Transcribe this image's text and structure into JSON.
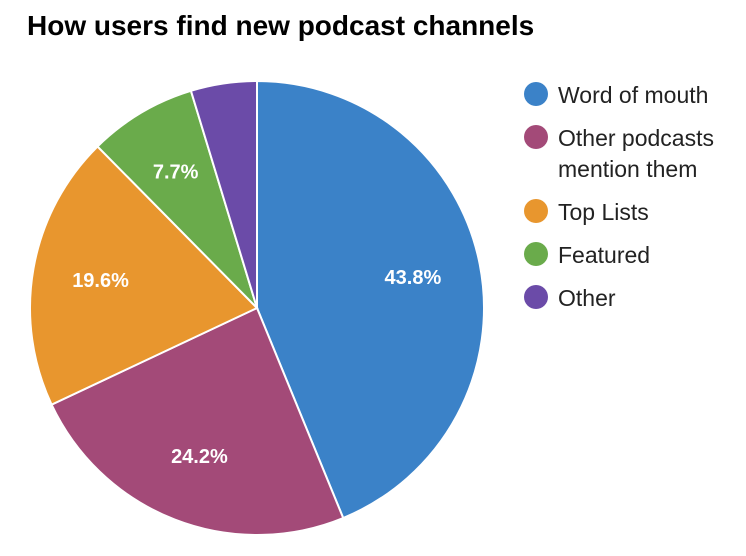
{
  "chart_data": {
    "type": "pie",
    "title": "How users find new podcast channels",
    "legend_position": "right",
    "slices": [
      {
        "label": "Word of mouth",
        "value": 43.8,
        "value_label": "43.8%",
        "color": "#3b82c8"
      },
      {
        "label": "Other podcasts mention them",
        "value": 24.2,
        "value_label": "24.2%",
        "color": "#a34a78"
      },
      {
        "label": "Top Lists",
        "value": 19.6,
        "value_label": "19.6%",
        "color": "#e8962e"
      },
      {
        "label": "Featured",
        "value": 7.7,
        "value_label": "7.7%",
        "color": "#6aab4b"
      },
      {
        "label": "Other",
        "value": 4.7,
        "value_label": "",
        "color": "#6b4ba8"
      }
    ]
  }
}
